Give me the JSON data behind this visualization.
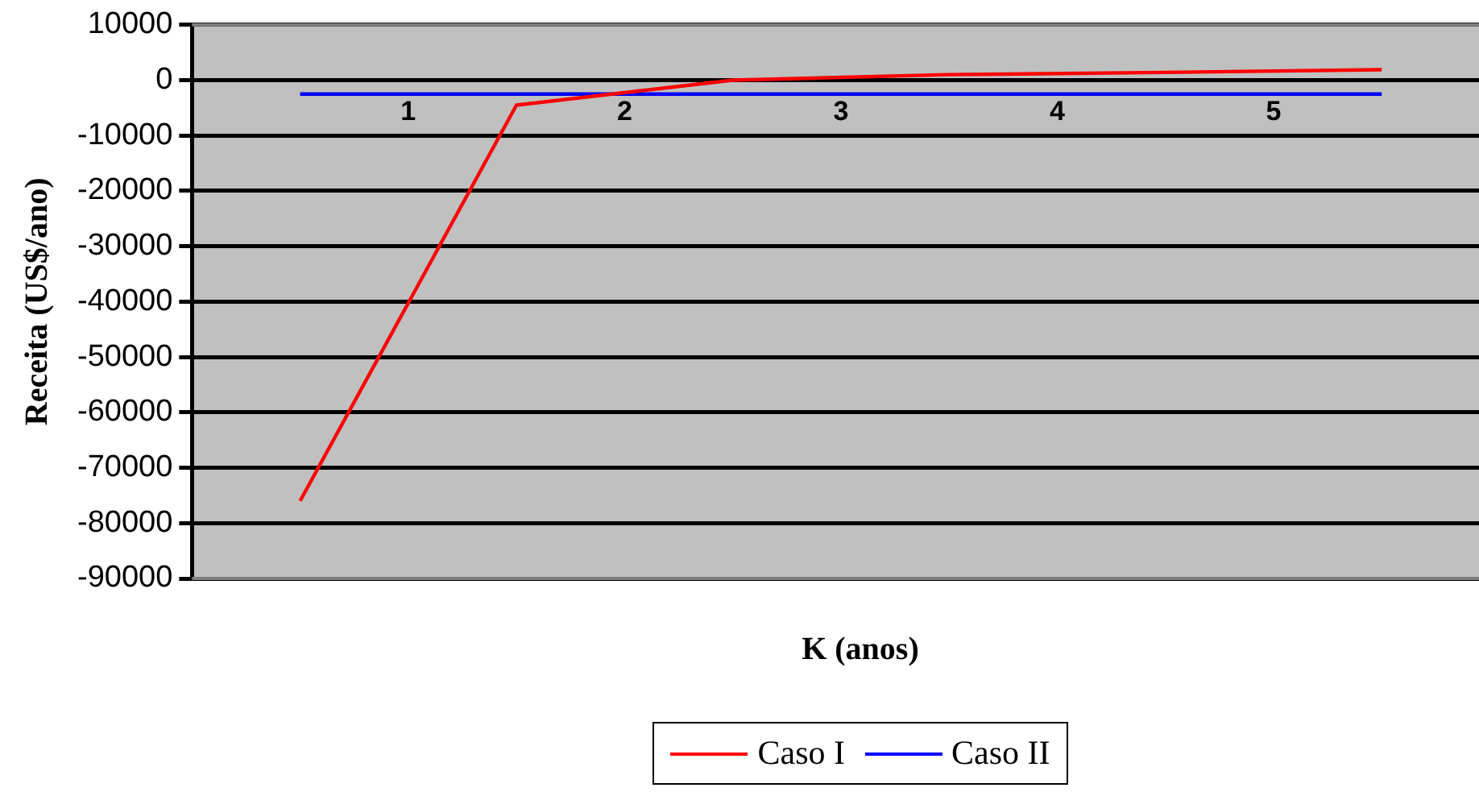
{
  "chart_data": {
    "type": "line",
    "xlabel": "K (anos)",
    "ylabel": "Receita (US$/ano)",
    "xlim": [
      0,
      5.95
    ],
    "xticks": [
      1,
      2,
      3,
      4,
      5
    ],
    "ylim": [
      -90000,
      10000
    ],
    "yticks": [
      -90000,
      -80000,
      -70000,
      -60000,
      -50000,
      -40000,
      -30000,
      -20000,
      -10000,
      0,
      10000
    ],
    "grid": "y",
    "legend": "bottom",
    "marker": "none",
    "line_style": "solid",
    "x": [
      0.5,
      1.5,
      2.5,
      3.5,
      4.5,
      5.5
    ],
    "series": [
      {
        "name": "Caso I",
        "color": "#ff0000",
        "values": [
          -76000,
          -4500,
          0,
          1000,
          1400,
          1900
        ]
      },
      {
        "name": "Caso II",
        "color": "#0000ff",
        "values": [
          -2500,
          -2500,
          -2500,
          -2500,
          -2500,
          -2500
        ]
      }
    ]
  }
}
